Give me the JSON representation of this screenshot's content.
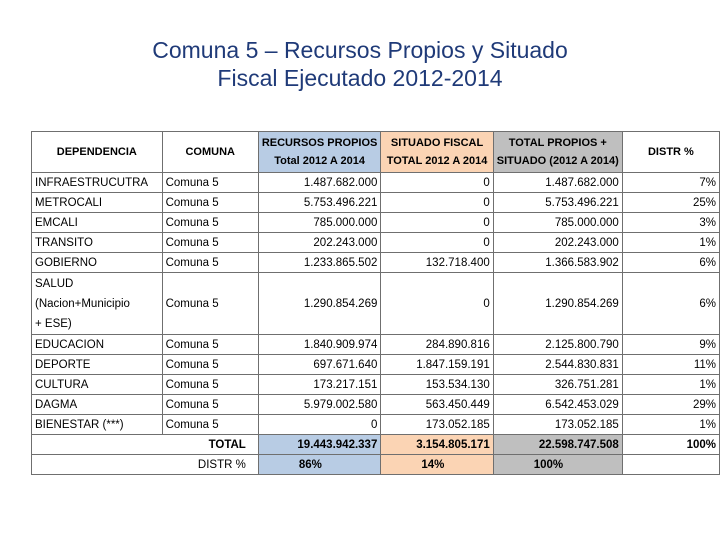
{
  "title": {
    "line1": "Comuna 5 – Recursos Propios y Situado",
    "line2": "Fiscal Ejecutado 2012-2014"
  },
  "table": {
    "headers": {
      "dependencia": "DEPENDENCIA",
      "comuna": "COMUNA",
      "rp_line1": "RECURSOS PROPIOS",
      "rp_line2": "Total 2012 A 2014",
      "sf_line1": "SITUADO FISCAL",
      "sf_line2": "TOTAL 2012 A 2014",
      "tp_line1": "TOTAL PROPIOS +",
      "tp_line2": "SITUADO (2012 A 2014)",
      "distr": "DISTR %"
    },
    "rows": [
      {
        "dep": "INFRAESTRUCUTRA",
        "comuna": "Comuna 5",
        "rp": "1.487.682.000",
        "sf": "0",
        "tp": "1.487.682.000",
        "distr": "7%"
      },
      {
        "dep": "METROCALI",
        "comuna": "Comuna 5",
        "rp": "5.753.496.221",
        "sf": "0",
        "tp": "5.753.496.221",
        "distr": "25%"
      },
      {
        "dep": "EMCALI",
        "comuna": "Comuna 5",
        "rp": "785.000.000",
        "sf": "0",
        "tp": "785.000.000",
        "distr": "3%"
      },
      {
        "dep": "TRANSITO",
        "comuna": "Comuna 5",
        "rp": "202.243.000",
        "sf": "0",
        "tp": "202.243.000",
        "distr": "1%"
      },
      {
        "dep": "GOBIERNO",
        "comuna": "Comuna 5",
        "rp": "1.233.865.502",
        "sf": "132.718.400",
        "tp": "1.366.583.902",
        "distr": "6%"
      },
      {
        "dep1": "SALUD",
        "dep2": "(Nacion+Municipio",
        "dep3": "+ ESE)",
        "comuna": "Comuna 5",
        "rp": "1.290.854.269",
        "sf": "0",
        "tp": "1.290.854.269",
        "distr": "6%"
      },
      {
        "dep": "EDUCACION",
        "comuna": "Comuna 5",
        "rp": "1.840.909.974",
        "sf": "284.890.816",
        "tp": "2.125.800.790",
        "distr": "9%"
      },
      {
        "dep": "DEPORTE",
        "comuna": "Comuna 5",
        "rp": "697.671.640",
        "sf": "1.847.159.191",
        "tp": "2.544.830.831",
        "distr": "11%"
      },
      {
        "dep": "CULTURA",
        "comuna": "Comuna 5",
        "rp": "173.217.151",
        "sf": "153.534.130",
        "tp": "326.751.281",
        "distr": "1%"
      },
      {
        "dep": "DAGMA",
        "comuna": "Comuna 5",
        "rp": "5.979.002.580",
        "sf": "563.450.449",
        "tp": "6.542.453.029",
        "distr": "29%"
      },
      {
        "dep": "BIENESTAR (***)",
        "comuna": "Comuna 5",
        "rp": "0",
        "sf": "173.052.185",
        "tp": "173.052.185",
        "distr": "1%"
      }
    ],
    "total": {
      "label": "TOTAL",
      "rp": "19.443.942.337",
      "sf": "3.154.805.171",
      "tp": "22.598.747.508",
      "distr": "100%"
    },
    "distr_row": {
      "label": "DISTR %",
      "rp": "86%",
      "sf": "14%",
      "tp": "100%"
    }
  },
  "colors": {
    "title": "#1f3a78",
    "recursos_propios_header": "#b8cce4",
    "situado_fiscal_header": "#fbd4b4",
    "total_header": "#bfbfbf"
  }
}
